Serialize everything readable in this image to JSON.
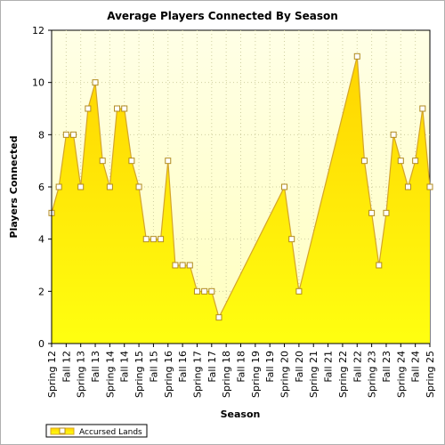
{
  "chart_data": {
    "type": "area",
    "title": "Average Players Connected By Season",
    "xlabel": "Season",
    "ylabel": "Players Connected",
    "ylim": [
      0,
      12
    ],
    "yticks": [
      0,
      2,
      4,
      6,
      8,
      10,
      12
    ],
    "grid": true,
    "legend_position": "bottom-left",
    "categories": [
      "Spring 12",
      "Fall 12",
      "Spring 13",
      "Fall 13",
      "Spring 14",
      "Fall 14",
      "Spring 15",
      "Fall 15",
      "Spring 16",
      "Fall 16",
      "Spring 17",
      "Fall 17",
      "Spring 18",
      "Fall 18",
      "Spring 19",
      "Fall 19",
      "Spring 20",
      "Fall 20",
      "Spring 21",
      "Fall 21",
      "Spring 22",
      "Fall 22",
      "Spring 23",
      "Fall 23",
      "Spring 24",
      "Fall 24",
      "Spring 25"
    ],
    "series": [
      {
        "name": "Accursed Lands",
        "color": "#ffee00",
        "line_color": "#d4a52a",
        "points": [
          {
            "x": 0.0,
            "y": 5
          },
          {
            "x": 0.5,
            "y": 6
          },
          {
            "x": 1.0,
            "y": 8
          },
          {
            "x": 1.5,
            "y": 8
          },
          {
            "x": 2.0,
            "y": 6
          },
          {
            "x": 2.5,
            "y": 9
          },
          {
            "x": 3.0,
            "y": 10
          },
          {
            "x": 3.5,
            "y": 7
          },
          {
            "x": 4.0,
            "y": 6
          },
          {
            "x": 4.5,
            "y": 9
          },
          {
            "x": 5.0,
            "y": 9
          },
          {
            "x": 5.5,
            "y": 7
          },
          {
            "x": 6.0,
            "y": 6
          },
          {
            "x": 6.5,
            "y": 4
          },
          {
            "x": 7.0,
            "y": 4
          },
          {
            "x": 7.5,
            "y": 4
          },
          {
            "x": 8.0,
            "y": 7
          },
          {
            "x": 8.5,
            "y": 3
          },
          {
            "x": 9.0,
            "y": 3
          },
          {
            "x": 9.5,
            "y": 3
          },
          {
            "x": 10.0,
            "y": 2
          },
          {
            "x": 10.5,
            "y": 2
          },
          {
            "x": 11.0,
            "y": 2
          },
          {
            "x": 11.5,
            "y": 1
          },
          {
            "x": 16.0,
            "y": 6
          },
          {
            "x": 16.5,
            "y": 4
          },
          {
            "x": 17.0,
            "y": 2
          },
          {
            "x": 21.0,
            "y": 11
          },
          {
            "x": 21.5,
            "y": 7
          },
          {
            "x": 22.0,
            "y": 5
          },
          {
            "x": 22.5,
            "y": 3
          },
          {
            "x": 23.0,
            "y": 5
          },
          {
            "x": 23.5,
            "y": 8
          },
          {
            "x": 24.0,
            "y": 7
          },
          {
            "x": 24.5,
            "y": 6
          },
          {
            "x": 25.0,
            "y": 7
          },
          {
            "x": 25.5,
            "y": 9
          },
          {
            "x": 26.0,
            "y": 6
          }
        ]
      }
    ]
  }
}
